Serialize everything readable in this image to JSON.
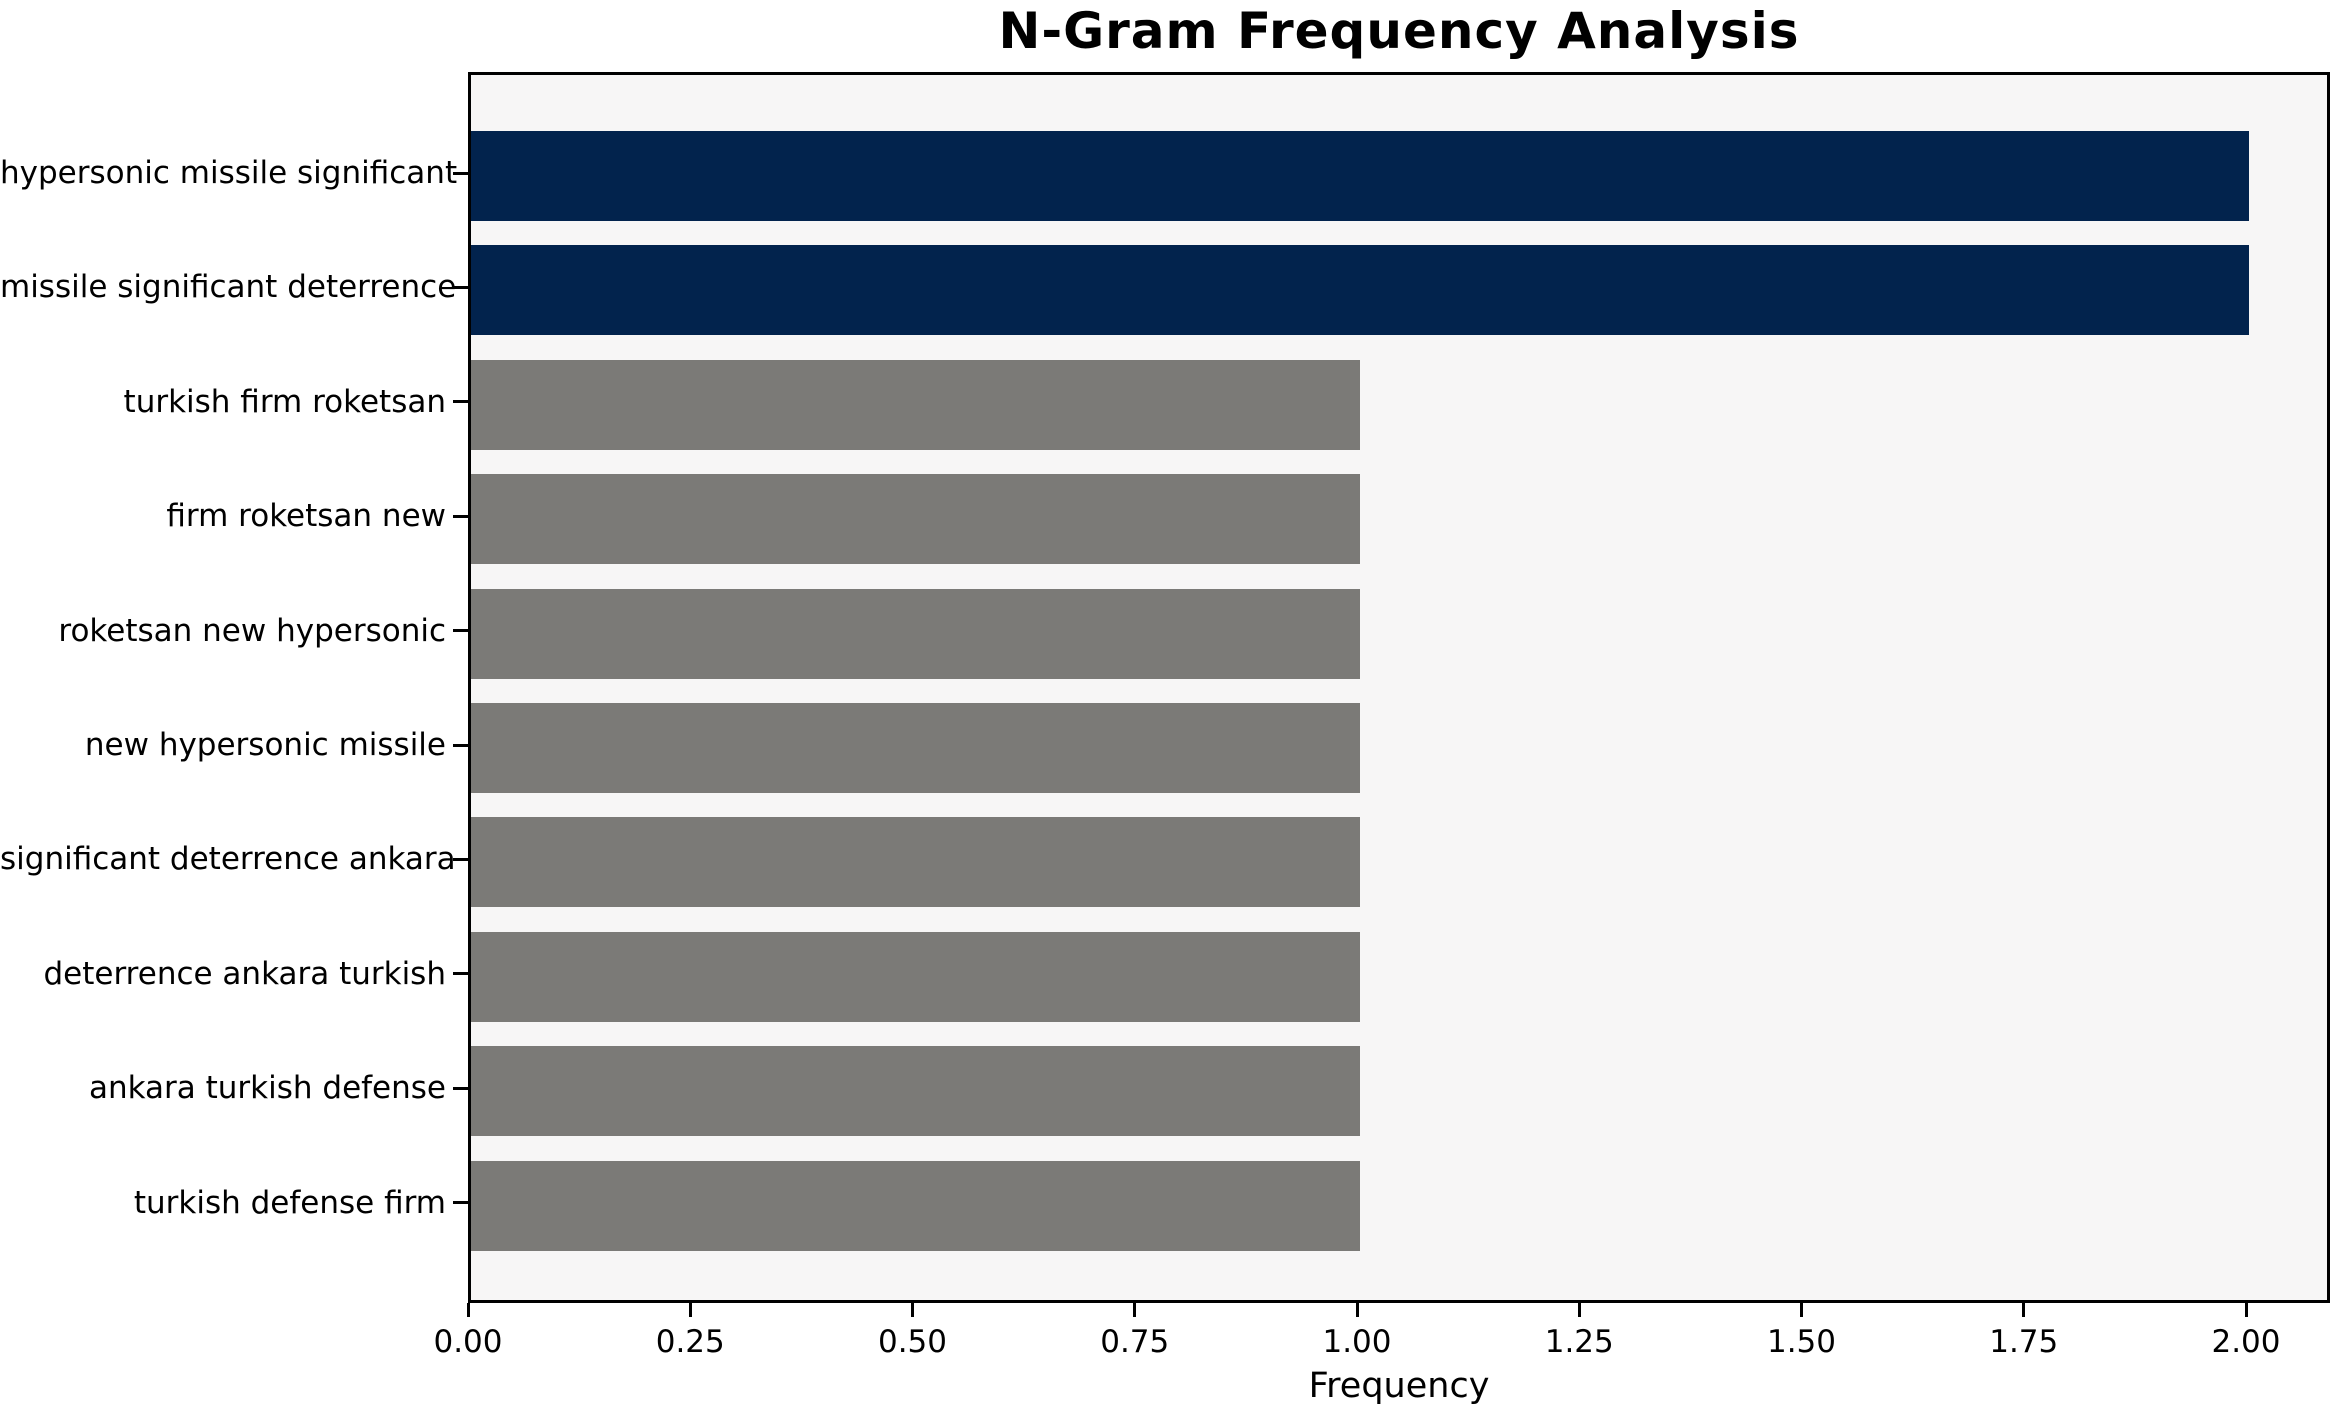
{
  "chart_data": {
    "type": "bar",
    "orientation": "horizontal",
    "title": "N-Gram Frequency Analysis",
    "xlabel": "Frequency",
    "ylabel": "",
    "categories": [
      "hypersonic missile significant",
      "missile significant deterrence",
      "turkish firm roketsan",
      "firm roketsan new",
      "roketsan new hypersonic",
      "new hypersonic missile",
      "significant deterrence ankara",
      "deterrence ankara turkish",
      "ankara turkish defense",
      "turkish defense firm"
    ],
    "values": [
      2,
      2,
      1,
      1,
      1,
      1,
      1,
      1,
      1,
      1
    ],
    "bar_colors": [
      "#02234d",
      "#02234d",
      "#7b7a77",
      "#7b7a77",
      "#7b7a77",
      "#7b7a77",
      "#7b7a77",
      "#7b7a77",
      "#7b7a77",
      "#7b7a77"
    ],
    "x_tick_labels": [
      "0.00",
      "0.25",
      "0.50",
      "0.75",
      "1.00",
      "1.25",
      "1.50",
      "1.75",
      "2.00"
    ],
    "x_tick_values": [
      0,
      0.25,
      0.5,
      0.75,
      1.0,
      1.25,
      1.5,
      1.75,
      2.0
    ],
    "xlim": [
      0,
      2.08
    ],
    "grid": false,
    "legend": null,
    "colors": {
      "highlight_bar": "#02234d",
      "default_bar": "#7b7a77",
      "plot_background": "#f7f6f6",
      "figure_background": "#ffffff",
      "spine": "#000000",
      "text": "#000000"
    }
  }
}
